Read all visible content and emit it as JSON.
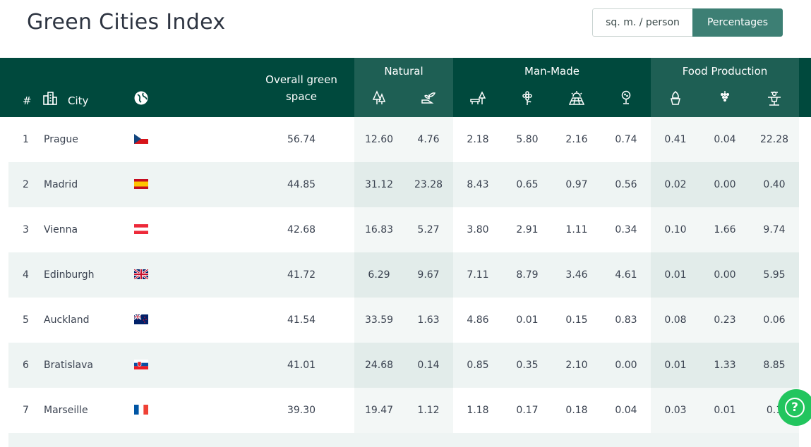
{
  "page_title": "Green Cities Index",
  "toggle": {
    "option_1": "sq. m. / person",
    "option_2": "Percentages",
    "selected": "Percentages"
  },
  "header": {
    "rank": "#",
    "city": "City",
    "overall_line1": "Overall green",
    "overall_line2": "space",
    "groups": [
      "Natural",
      "Man-Made",
      "Food Production"
    ],
    "icons": [
      "trees-icon",
      "plant-hand-icon",
      "park-bench-icon",
      "flower-icon",
      "field-sun-icon",
      "golf-icon",
      "potted-plant-icon",
      "grapes-icon",
      "scarecrow-icon"
    ]
  },
  "colors": {
    "header_bg": "#00493d",
    "band_bg": "#1e5f54",
    "accent": "#3d7f74",
    "row_alt": "#eef4f3",
    "help": "#22c55e"
  },
  "rows": [
    {
      "rank": "1",
      "city": "Prague",
      "flag": "czech-flag",
      "overall": "56.74",
      "values": [
        "12.60",
        "4.76",
        "2.18",
        "5.80",
        "2.16",
        "0.74",
        "0.41",
        "0.04",
        "22.28"
      ]
    },
    {
      "rank": "2",
      "city": "Madrid",
      "flag": "spain-flag",
      "overall": "44.85",
      "values": [
        "31.12",
        "23.28",
        "8.43",
        "0.65",
        "0.97",
        "0.56",
        "0.02",
        "0.00",
        "0.40"
      ]
    },
    {
      "rank": "3",
      "city": "Vienna",
      "flag": "austria-flag",
      "overall": "42.68",
      "values": [
        "16.83",
        "5.27",
        "3.80",
        "2.91",
        "1.11",
        "0.34",
        "0.10",
        "1.66",
        "9.74"
      ]
    },
    {
      "rank": "4",
      "city": "Edinburgh",
      "flag": "uk-flag",
      "overall": "41.72",
      "values": [
        "6.29",
        "9.67",
        "7.11",
        "8.79",
        "3.46",
        "4.61",
        "0.01",
        "0.00",
        "5.95"
      ]
    },
    {
      "rank": "5",
      "city": "Auckland",
      "flag": "new-zealand-flag",
      "overall": "41.54",
      "values": [
        "33.59",
        "1.63",
        "4.86",
        "0.01",
        "0.15",
        "0.83",
        "0.08",
        "0.23",
        "0.06"
      ]
    },
    {
      "rank": "6",
      "city": "Bratislava",
      "flag": "slovakia-flag",
      "overall": "41.01",
      "values": [
        "24.68",
        "0.14",
        "0.85",
        "0.35",
        "2.10",
        "0.00",
        "0.01",
        "1.33",
        "8.85"
      ]
    },
    {
      "rank": "7",
      "city": "Marseille",
      "flag": "france-flag",
      "overall": "39.30",
      "values": [
        "19.47",
        "1.12",
        "1.18",
        "0.17",
        "0.18",
        "0.04",
        "0.03",
        "0.01",
        "0.1"
      ]
    }
  ],
  "help_button": "?"
}
